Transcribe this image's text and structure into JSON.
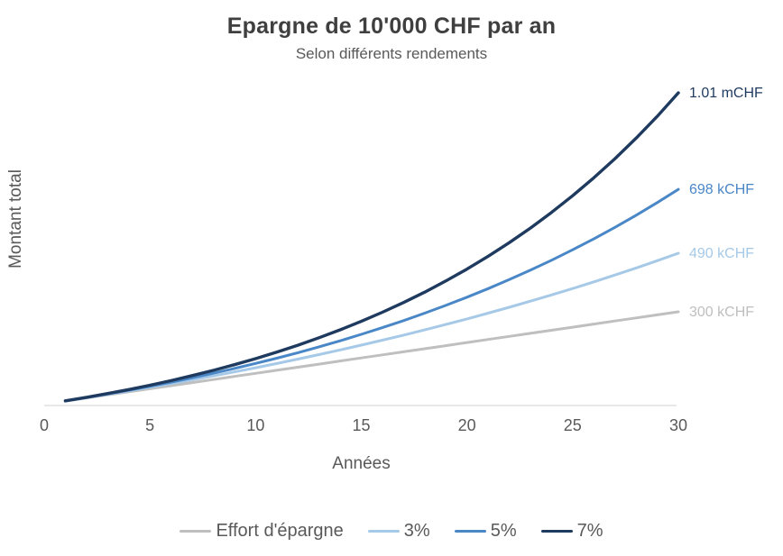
{
  "figure": {
    "title": "Epargne de 10'000 CHF par an",
    "subtitle": "Selon différents rendements"
  },
  "axes": {
    "x_label": "Années",
    "y_label": "Montant total",
    "x_ticks": [
      0,
      5,
      10,
      15,
      20,
      25,
      30
    ],
    "xlim": [
      0,
      30
    ],
    "ylim_kchf": [
      0,
      1050
    ],
    "grid": false
  },
  "chart_data": {
    "type": "line",
    "x_years": [
      1,
      2,
      3,
      4,
      5,
      6,
      7,
      8,
      9,
      10,
      11,
      12,
      13,
      14,
      15,
      16,
      17,
      18,
      19,
      20,
      21,
      22,
      23,
      24,
      25,
      26,
      27,
      28,
      29,
      30
    ],
    "unit": "kCHF",
    "title": "Epargne de 10'000 CHF par an",
    "subtitle": "Selon différents rendements",
    "xlabel": "Années",
    "ylabel": "Montant total",
    "legend_position": "bottom",
    "series": [
      {
        "name": "Effort d'épargne",
        "color": "#BFBFBF",
        "end_label": "300 kCHF",
        "values": [
          10,
          20,
          30,
          40,
          50,
          60,
          70,
          80,
          90,
          100,
          110,
          120,
          130,
          140,
          150,
          160,
          170,
          180,
          190,
          200,
          210,
          220,
          230,
          240,
          250,
          260,
          270,
          280,
          290,
          300
        ]
      },
      {
        "name": "3%",
        "color": "#A6C9E8",
        "end_label": "490 kCHF",
        "values": [
          10.3,
          20.9,
          31.8,
          43.1,
          54.7,
          66.6,
          78.9,
          91.6,
          104.6,
          118.1,
          131.9,
          146.2,
          160.9,
          176.0,
          191.6,
          207.6,
          224.1,
          241.2,
          258.7,
          276.8,
          295.4,
          314.5,
          334.3,
          354.6,
          375.5,
          397.1,
          419.3,
          442.2,
          465.8,
          490.0
        ]
      },
      {
        "name": "5%",
        "color": "#4A87C7",
        "end_label": "698 kCHF",
        "values": [
          10.5,
          21.5,
          33.1,
          45.3,
          58.0,
          71.4,
          85.5,
          100.3,
          115.8,
          132.1,
          149.2,
          167.1,
          186.0,
          205.8,
          226.6,
          248.4,
          271.3,
          295.4,
          320.7,
          347.2,
          375.1,
          404.3,
          435.0,
          467.3,
          501.1,
          536.7,
          574.0,
          613.2,
          654.4,
          697.6
        ]
      },
      {
        "name": "7%",
        "color": "#1F3A5F",
        "end_label": "1.01 mCHF",
        "values": [
          10.7,
          22.1,
          34.4,
          47.5,
          61.5,
          76.5,
          92.6,
          109.8,
          128.2,
          147.8,
          168.9,
          191.4,
          215.5,
          241.3,
          268.9,
          298.4,
          330.0,
          363.8,
          400.0,
          438.7,
          480.1,
          524.4,
          571.8,
          622.5,
          676.8,
          734.8,
          797.0,
          863.5,
          934.6,
          1010.7
        ]
      }
    ]
  },
  "legend": {
    "items": [
      {
        "label": "Effort d'épargne",
        "color": "#BFBFBF"
      },
      {
        "label": "3%",
        "color": "#A6C9E8"
      },
      {
        "label": "5%",
        "color": "#4A87C7"
      },
      {
        "label": "7%",
        "color": "#1F3A5F"
      }
    ]
  },
  "colors": {
    "axis_line": "#D9D9D9",
    "title_text": "#3F3F3F",
    "secondary_text": "#595959"
  }
}
